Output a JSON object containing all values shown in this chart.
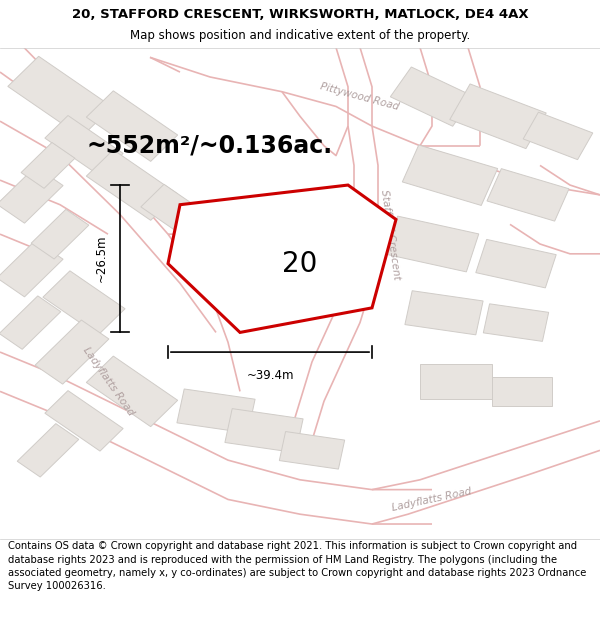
{
  "title_line1": "20, STAFFORD CRESCENT, WIRKSWORTH, MATLOCK, DE4 4AX",
  "title_line2": "Map shows position and indicative extent of the property.",
  "footer_text": "Contains OS data © Crown copyright and database right 2021. This information is subject to Crown copyright and database rights 2023 and is reproduced with the permission of HM Land Registry. The polygons (including the associated geometry, namely x, y co-ordinates) are subject to Crown copyright and database rights 2023 Ordnance Survey 100026316.",
  "area_label": "~552m²/~0.136ac.",
  "number_label": "20",
  "width_label": "~39.4m",
  "height_label": "~26.5m",
  "map_bg": "#f7f5f3",
  "road_line_color": "#e8b4b4",
  "road_fill_color": "#f0dada",
  "property_fill": "#ffffff",
  "property_outline": "#cc0000",
  "building_fill": "#e8e4e0",
  "building_outline": "#d0ccc8",
  "road_label_color": "#b0a0a0",
  "title_bg": "#ffffff",
  "footer_bg": "#ffffff",
  "dim_line_color": "#000000",
  "title_fontsize": 9.5,
  "subtitle_fontsize": 8.5,
  "area_fontsize": 17,
  "number_fontsize": 20,
  "label_fontsize": 8.5,
  "road_label_fontsize": 7.5,
  "footer_fontsize": 7.2
}
